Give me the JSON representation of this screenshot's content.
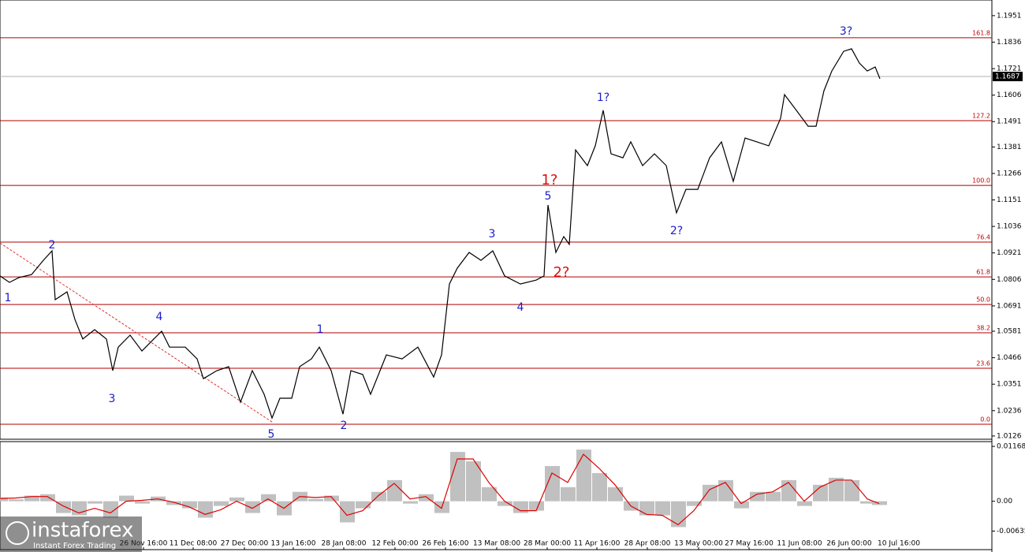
{
  "chart_data": [
    {
      "type": "line",
      "series": [
        {
          "color": "#000000",
          "x": [
            0,
            12,
            24,
            40,
            55,
            66,
            70,
            85,
            95,
            105,
            120,
            135,
            143,
            150,
            165,
            180,
            195,
            205,
            215,
            235,
            250,
            258,
            275,
            290,
            305,
            320,
            335,
            345,
            355,
            370,
            380,
            395,
            405,
            420,
            435,
            445,
            460,
            470,
            490,
            510,
            530,
            550,
            560,
            570,
            580,
            595,
            610,
            625,
            640,
            660,
            680,
            690,
            695,
            705,
            715,
            722,
            730,
            745,
            755,
            765,
            775,
            790,
            800,
            815,
            830,
            845,
            858,
            870,
            885,
            900,
            915,
            930,
            945,
            960,
            975,
            990,
            995,
            1010,
            1025,
            1035,
            1045,
            1055,
            1070,
            1080,
            1090,
            1100,
            1110,
            1116
          ],
          "values": [
            1.0821,
            1.0793,
            1.0814,
            1.0827,
            1.0889,
            1.093,
            1.0718,
            1.0752,
            1.0632,
            1.0547,
            1.0588,
            1.0547,
            1.041,
            1.0512,
            1.0564,
            1.0495,
            1.0547,
            1.0581,
            1.0512,
            1.0512,
            1.0461,
            1.0375,
            1.041,
            1.0427,
            1.0273,
            1.041,
            1.0307,
            1.0204,
            1.029,
            1.029,
            1.0427,
            1.0461,
            1.0512,
            1.041,
            1.0221,
            1.041,
            1.0393,
            1.0307,
            1.0478,
            1.0461,
            1.0512,
            1.0382,
            1.0478,
            1.0786,
            1.0855,
            1.0923,
            1.0889,
            1.093,
            1.0821,
            1.0786,
            1.0803,
            1.0821,
            1.1129,
            1.0923,
            1.0992,
            1.0958,
            1.1368,
            1.13,
            1.1386,
            1.154,
            1.1351,
            1.1334,
            1.1403,
            1.13,
            1.1351,
            1.13,
            1.1095,
            1.1197,
            1.1197,
            1.1334,
            1.1403,
            1.1232,
            1.142,
            1.1403,
            1.1386,
            1.1505,
            1.1608,
            1.154,
            1.1471,
            1.1471,
            1.1625,
            1.1711,
            1.1796,
            1.1807,
            1.1745,
            1.1711,
            1.1728,
            1.1677
          ]
        }
      ],
      "xlim": [
        0,
        1258
      ],
      "ylim": [
        1.0112,
        1.2019
      ],
      "yticks": [
        1.1951,
        1.1836,
        1.1721,
        1.1606,
        1.1491,
        1.1381,
        1.1266,
        1.1151,
        1.1036,
        1.0921,
        1.0806,
        1.0691,
        1.0581,
        1.0466,
        1.0351,
        1.0236,
        1.0126
      ],
      "current_price": {
        "value": 1.1687,
        "label": "1.1687"
      },
      "fib_levels": [
        {
          "label": "161.8",
          "price": 1.1855
        },
        {
          "label": "127.2",
          "price": 1.1495
        },
        {
          "label": "100.0",
          "price": 1.1214
        },
        {
          "label": "76.4",
          "price": 1.0968
        },
        {
          "label": "61.8",
          "price": 1.0817
        },
        {
          "label": "50.0",
          "price": 1.0697
        },
        {
          "label": "38.2",
          "price": 1.0574
        },
        {
          "label": "23.6",
          "price": 1.042
        },
        {
          "label": "0.0",
          "price": 1.0177
        }
      ],
      "fib_color": "#b00000",
      "trendline": {
        "x": [
          0,
          345
        ],
        "y": [
          1.0964,
          1.0187
        ],
        "color": "#e03030"
      },
      "annotations": [
        {
          "text": "1",
          "x": 10,
          "y": 1.0725,
          "color": "#1c1cc8"
        },
        {
          "text": "2",
          "x": 66,
          "y": 1.0954,
          "color": "#1c1cc8"
        },
        {
          "text": "3",
          "x": 142,
          "y": 1.0286,
          "color": "#1c1cc8"
        },
        {
          "text": "4",
          "x": 202,
          "y": 1.0643,
          "color": "#1c1cc8"
        },
        {
          "text": "5",
          "x": 344,
          "y": 1.0132,
          "color": "#1c1cc8"
        },
        {
          "text": "1",
          "x": 406,
          "y": 1.0588,
          "color": "#1c1cc8"
        },
        {
          "text": "2",
          "x": 436,
          "y": 1.017,
          "color": "#1c1cc8"
        },
        {
          "text": "3",
          "x": 624,
          "y": 1.1002,
          "color": "#1c1cc8"
        },
        {
          "text": "4",
          "x": 660,
          "y": 1.0684,
          "color": "#1c1cc8"
        },
        {
          "text": "5",
          "x": 695,
          "y": 1.1166,
          "color": "#1c1cc8"
        },
        {
          "text": "1?",
          "x": 697,
          "y": 1.1235,
          "color": "#e01010",
          "big": true
        },
        {
          "text": "2?",
          "x": 712,
          "y": 1.0834,
          "color": "#e01010",
          "big": true
        },
        {
          "text": "1?",
          "x": 765,
          "y": 1.1594,
          "color": "#1c1cc8"
        },
        {
          "text": "2?",
          "x": 858,
          "y": 1.1016,
          "color": "#1c1cc8"
        },
        {
          "text": "3?",
          "x": 1073,
          "y": 1.1882,
          "color": "#1c1cc8"
        }
      ]
    },
    {
      "type": "bar",
      "x": [
        0,
        20,
        40,
        60,
        80,
        100,
        120,
        140,
        160,
        180,
        200,
        220,
        240,
        260,
        280,
        300,
        320,
        340,
        360,
        380,
        400,
        420,
        440,
        460,
        480,
        500,
        520,
        540,
        560,
        580,
        600,
        620,
        640,
        660,
        680,
        700,
        720,
        740,
        760,
        780,
        800,
        820,
        840,
        860,
        880,
        900,
        920,
        940,
        960,
        980,
        1000,
        1020,
        1040,
        1060,
        1080,
        1100,
        1115
      ],
      "values": [
        0.0008,
        0.0004,
        0.0012,
        0.0015,
        -0.0025,
        -0.003,
        -0.0005,
        -0.0035,
        0.0012,
        -0.0005,
        0.001,
        -0.0008,
        -0.0015,
        -0.0035,
        -0.001,
        0.0008,
        -0.0025,
        0.0015,
        -0.003,
        0.002,
        0.0005,
        0.0012,
        -0.0045,
        -0.0015,
        0.002,
        0.0045,
        -0.0005,
        0.0015,
        -0.0025,
        0.0105,
        0.0085,
        0.003,
        -0.001,
        -0.0025,
        -0.002,
        0.0075,
        0.003,
        0.011,
        0.006,
        0.003,
        -0.002,
        -0.003,
        -0.003,
        -0.0055,
        -0.001,
        0.0035,
        0.0045,
        -0.0015,
        0.002,
        0.002,
        0.0045,
        -0.001,
        0.0035,
        0.005,
        0.0045,
        -0.0005,
        -0.0008
      ],
      "signal": [
        0.0006,
        0.0007,
        0.001,
        0.001,
        -0.001,
        -0.0025,
        -0.0015,
        -0.0025,
        0.0,
        0.0002,
        0.0005,
        -0.0002,
        -0.0012,
        -0.0028,
        -0.0018,
        0.0,
        -0.0015,
        0.0005,
        -0.0015,
        0.001,
        0.0008,
        0.001,
        -0.003,
        -0.002,
        0.0012,
        0.0038,
        0.0005,
        0.001,
        -0.0015,
        0.009,
        0.009,
        0.004,
        0.0,
        -0.002,
        -0.002,
        0.006,
        0.004,
        0.01,
        0.007,
        0.0035,
        -0.001,
        -0.0028,
        -0.003,
        -0.005,
        -0.002,
        0.0025,
        0.004,
        -0.0005,
        0.0015,
        0.002,
        0.004,
        0.0,
        0.003,
        0.0045,
        0.0045,
        0.0005,
        -0.0005
      ],
      "color": "#c0c0c0",
      "signal_color": "#e00000",
      "xlim": [
        0,
        1258
      ],
      "ylim": [
        -0.0103,
        0.0127
      ],
      "yticks": [
        0.01168,
        {
          "value": 0,
          "label": "0.00"
        },
        -0.00635
      ],
      "xticks": [
        {
          "value": 182,
          "label": "26 Nov 16:00"
        },
        {
          "value": 245,
          "label": "11 Dec 08:00"
        },
        {
          "value": 310,
          "label": "27 Dec 00:00"
        },
        {
          "value": 372,
          "label": "13 Jan 16:00"
        },
        {
          "value": 436,
          "label": "28 Jan 08:00"
        },
        {
          "value": 501,
          "label": "12 Feb 00:00"
        },
        {
          "value": 565,
          "label": "26 Feb 16:00"
        },
        {
          "value": 630,
          "label": "13 Mar 08:00"
        },
        {
          "value": 694,
          "label": "28 Mar 00:00"
        },
        {
          "value": 757,
          "label": "11 Apr 16:00"
        },
        {
          "value": 821,
          "label": "28 Apr 08:00"
        },
        {
          "value": 886,
          "label": "13 May 00:00"
        },
        {
          "value": 950,
          "label": "27 May 16:00"
        },
        {
          "value": 1014,
          "label": "11 Jun 08:00"
        },
        {
          "value": 1077,
          "label": "26 Jun 00:00"
        },
        {
          "value": 1140,
          "label": "10 Jul 16:00"
        }
      ]
    }
  ],
  "logo": {
    "name": "instaforex",
    "tagline": "Instant Forex Trading"
  }
}
